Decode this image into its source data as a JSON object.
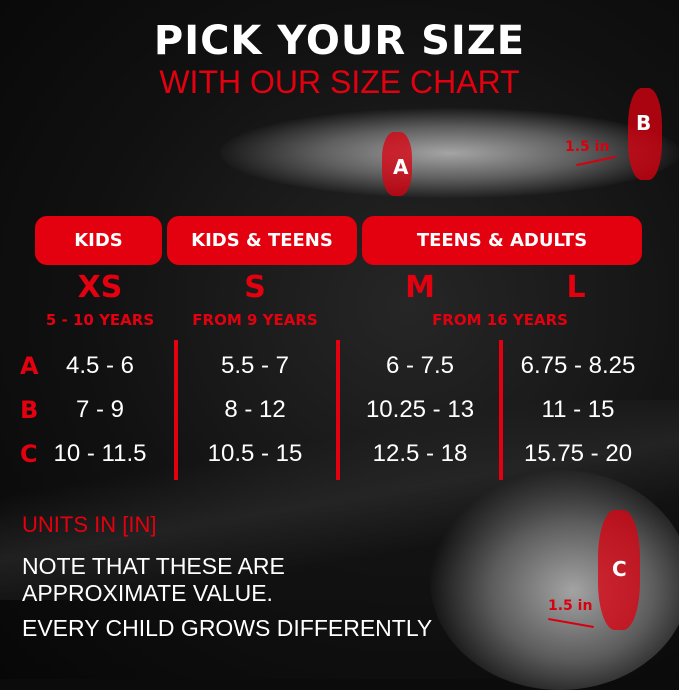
{
  "title": "PICK YOUR SIZE",
  "subtitle": "WITH OUR SIZE CHART",
  "accent_color": "#e3000f",
  "illustration": {
    "markers": [
      "A",
      "B",
      "C"
    ],
    "arm_band_width": "1.5 in",
    "knee_band_width": "1.5 in"
  },
  "groups": [
    "KIDS",
    "KIDS & TEENS",
    "TEENS & ADULTS"
  ],
  "sizes": [
    "XS",
    "S",
    "M",
    "L"
  ],
  "ages": [
    "5 - 10 YEARS",
    "FROM 9 YEARS",
    "FROM 16 YEARS"
  ],
  "rows": [
    {
      "label": "A",
      "values": [
        "4.5 - 6",
        "5.5 - 7",
        "6 - 7.5",
        "6.75 - 8.25"
      ]
    },
    {
      "label": "B",
      "values": [
        "7 - 9",
        "8 - 12",
        "10.25 - 13",
        "11 - 15"
      ]
    },
    {
      "label": "C",
      "values": [
        "10 - 11.5",
        "10.5 - 15",
        "12.5 - 18",
        "15.75 - 20"
      ]
    }
  ],
  "units": "UNITS IN [IN]",
  "notes": [
    "NOTE THAT THESE ARE",
    "APPROXIMATE VALUE.",
    "EVERY CHILD GROWS DIFFERENTLY"
  ]
}
